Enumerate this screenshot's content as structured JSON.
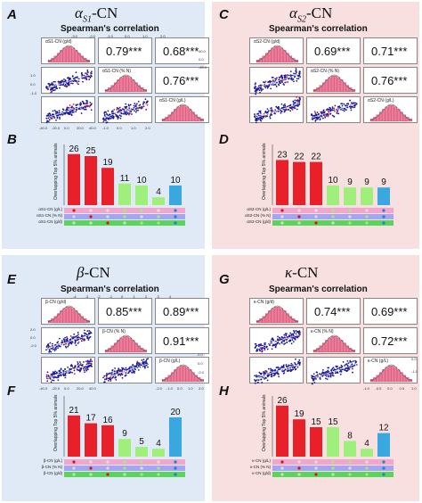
{
  "panels": [
    {
      "id": "A",
      "title_base": "α",
      "title_sub": "S1",
      "title_tail": "-CN",
      "subtitle": "Spearman's correlation",
      "labels": [
        "αS1-CN (g/d)",
        "αS1-CN (% N)",
        "αS1-CN (g/L)"
      ],
      "corr": [
        "0.79***",
        "0.68***",
        "0.76***"
      ]
    },
    {
      "id": "C",
      "title_base": "α",
      "title_sub": "S2",
      "title_tail": "-CN",
      "subtitle": "Spearman's correlation",
      "labels": [
        "αS2-CN (g/d)",
        "αS2-CN (% N)",
        "αS2-CN (g/L)"
      ],
      "corr": [
        "0.69***",
        "0.71***",
        "0.76***"
      ]
    },
    {
      "id": "E",
      "title_base": "β",
      "title_sub": "",
      "title_tail": "-CN",
      "subtitle": "Spearman's correlation",
      "labels": [
        "β-CN (g/d)",
        "β-CN (% N)",
        "β-CN (g/L)"
      ],
      "corr": [
        "0.85***",
        "0.89***",
        "0.91***"
      ]
    },
    {
      "id": "G",
      "title_base": "κ",
      "title_sub": "",
      "title_tail": "-CN",
      "subtitle": "Spearman's correlation",
      "labels": [
        "κ-CN (g/d)",
        "κ-CN (% N)",
        "κ-CN (g/L)"
      ],
      "corr": [
        "0.74***",
        "0.69***",
        "0.72***"
      ]
    }
  ],
  "chart_data": [
    {
      "id": "B",
      "type": "bar",
      "ylabel": "Overlapping Top 5% animals",
      "values": [
        26,
        25,
        19,
        11,
        10,
        4,
        10
      ],
      "colors": [
        "#e8202a",
        "#e8202a",
        "#e8202a",
        "#9ef07a",
        "#9ef07a",
        "#9ef07a",
        "#3aa8e0"
      ],
      "rows": [
        "αS1-CN (g/L)",
        "αS1-CN (% N)",
        "αS1-CN (g/d)"
      ]
    },
    {
      "id": "D",
      "type": "bar",
      "ylabel": "Overlapping Top 5% animals",
      "values": [
        23,
        22,
        22,
        10,
        9,
        9,
        9
      ],
      "colors": [
        "#e8202a",
        "#e8202a",
        "#e8202a",
        "#9ef07a",
        "#9ef07a",
        "#9ef07a",
        "#3aa8e0"
      ],
      "rows": [
        "αS2-CN (g/L)",
        "αS2-CN (% N)",
        "αS2-CN (g/d)"
      ]
    },
    {
      "id": "F",
      "type": "bar",
      "ylabel": "Overlapping Top 5% animals",
      "values": [
        21,
        17,
        16,
        9,
        5,
        4,
        20
      ],
      "colors": [
        "#e8202a",
        "#e8202a",
        "#e8202a",
        "#9ef07a",
        "#9ef07a",
        "#9ef07a",
        "#3aa8e0"
      ],
      "rows": [
        "β-CN (g/L)",
        "β-CN (% N)",
        "β-CN (g/d)"
      ]
    },
    {
      "id": "H",
      "type": "bar",
      "ylabel": "Overlapping Top 5% animals",
      "values": [
        26,
        19,
        15,
        15,
        8,
        4,
        12
      ],
      "colors": [
        "#e8202a",
        "#e8202a",
        "#e8202a",
        "#9ef07a",
        "#9ef07a",
        "#9ef07a",
        "#3aa8e0"
      ],
      "rows": [
        "κ-CN (g/L)",
        "κ-CN (% N)",
        "κ-CN (g/d)"
      ]
    }
  ],
  "ticks": {
    "A_top": [
      "-3.0",
      "-2.0",
      "-1.0",
      "0.0",
      "1.0",
      "2.0"
    ],
    "A_right": [
      "40.0",
      "0.0",
      "-40.0"
    ],
    "E_top": [
      "-4",
      "-3",
      "-2",
      "-1",
      "0",
      "1",
      "2",
      "3",
      "4"
    ],
    "E_left": [
      "2.0",
      "0.0",
      "-2.0"
    ],
    "E_bottom": [
      "-40.0",
      "-20.0",
      "0.0",
      "20.0",
      "40.0"
    ],
    "E_bottom2": [
      "-2.0",
      "-1.0",
      "0.0",
      "1.0",
      "2.0"
    ],
    "E_right": [
      "2.0",
      "0.0",
      "-2.0"
    ],
    "G_bottom": [
      "-1.0",
      "-0.5",
      "0.0",
      "0.5",
      "1.0"
    ],
    "G_right": [
      "0.0",
      "-1.0"
    ],
    "A_bottom": [
      "-40.0",
      "-20.0",
      "0.0",
      "20.0",
      "40.0"
    ],
    "A_bottom2": [
      "-1.0",
      "0.0",
      "1.0",
      "2.0"
    ],
    "A_left": [
      "1.0",
      "0.0",
      "-1.0"
    ]
  }
}
